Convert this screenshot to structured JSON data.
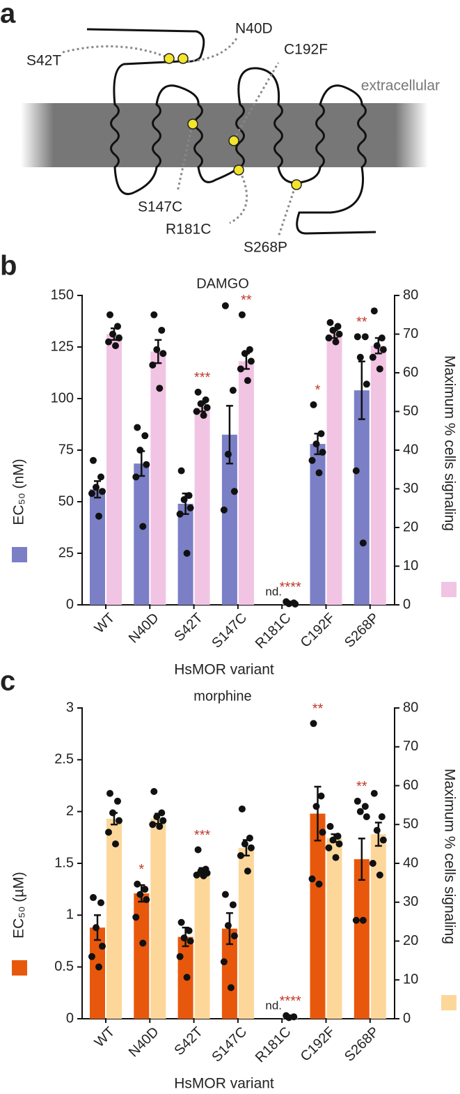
{
  "panel_a": {
    "panel": "a",
    "region_label": "extracellular",
    "mutations": [
      "S42T",
      "N40D",
      "C192F",
      "S147C",
      "R181C",
      "S268P"
    ]
  },
  "chart_data": [
    {
      "type": "bar",
      "panel": "b",
      "title": "DAMGO",
      "x_label": "HsMOR variant",
      "categories": [
        "WT",
        "N40D",
        "S42T",
        "S147C",
        "R181C",
        "C192F",
        "S268P"
      ],
      "ylim": [
        0,
        150
      ],
      "yticks": [
        0,
        25,
        50,
        75,
        100,
        125,
        150
      ],
      "y2lim": [
        0,
        80
      ],
      "y2ticks": [
        0,
        10,
        20,
        30,
        40,
        50,
        60,
        70,
        80
      ],
      "series": [
        {
          "name": "EC₅₀ (nM)",
          "color": "#7b7fc6",
          "values": [
            56,
            68.5,
            49,
            82.5,
            null,
            78,
            104
          ],
          "errors": [
            4,
            6,
            5,
            14,
            null,
            5,
            14
          ],
          "annotations": [
            null,
            null,
            null,
            null,
            "nd.",
            "*",
            "**"
          ],
          "points": [
            [
              70,
              62,
              57,
              55,
              54,
              43
            ],
            [
              86,
              82,
              75,
              68,
              62,
              38
            ],
            [
              65,
              53,
              51,
              47,
              44,
              25
            ],
            [
              145,
              104,
              73,
              55,
              46
            ],
            [],
            [
              97,
              83,
              78,
              74,
              70,
              64
            ],
            [
              130,
              130,
              120,
              107,
              65,
              30
            ]
          ]
        },
        {
          "name": "Maximum % cells signaling",
          "color": "#f2c4e4",
          "axis": "y2",
          "values": [
            70,
            65.5,
            51,
            63,
            0.5,
            70,
            67
          ],
          "errors": [
            1.5,
            3,
            1,
            2,
            0.1,
            1,
            2
          ],
          "annotations": [
            null,
            null,
            "***",
            "**",
            "****",
            null,
            null
          ],
          "points": [
            [
              75,
              72,
              70,
              69,
              68,
              67
            ],
            [
              75,
              71,
              66,
              65,
              62,
              56
            ],
            [
              55,
              53,
              52,
              51,
              50,
              49
            ],
            [
              75,
              66,
              65,
              63,
              61,
              58
            ],
            [
              0.8,
              0.5,
              0.3,
              0.2
            ],
            [
              73,
              72,
              71,
              70,
              69,
              68
            ],
            [
              76,
              69,
              67,
              66,
              64,
              61
            ]
          ]
        }
      ]
    },
    {
      "type": "bar",
      "panel": "c",
      "title": "morphine",
      "x_label": "HsMOR variant",
      "categories": [
        "WT",
        "N40D",
        "S42T",
        "S147C",
        "R181C",
        "C192F",
        "S268P"
      ],
      "ylim": [
        0,
        3
      ],
      "yticks": [
        0,
        0.5,
        1,
        1.5,
        2,
        2.5,
        3
      ],
      "y2lim": [
        0,
        80
      ],
      "y2ticks": [
        0,
        10,
        20,
        30,
        40,
        50,
        60,
        70,
        80
      ],
      "series": [
        {
          "name": "EC₅₀ (µM)",
          "color": "#e8580c",
          "values": [
            0.88,
            1.21,
            0.79,
            0.87,
            null,
            1.98,
            1.54
          ],
          "errors": [
            0.12,
            0.08,
            0.09,
            0.15,
            null,
            0.26,
            0.2
          ],
          "annotations": [
            null,
            "*",
            null,
            null,
            "nd.",
            "**",
            "**"
          ],
          "points": [
            [
              1.17,
              1.12,
              0.88,
              0.7,
              0.6,
              0.5
            ],
            [
              1.3,
              1.25,
              1.2,
              1.15,
              0.98,
              0.73
            ],
            [
              0.93,
              0.85,
              0.78,
              0.75,
              0.6,
              0.4
            ],
            [
              1.2,
              1.1,
              0.9,
              0.8,
              0.55,
              0.3
            ],
            [],
            [
              2.85,
              2.15,
              2.05,
              1.8,
              1.35,
              1.3
            ],
            [
              2.1,
              2.05,
              2.0,
              1.95,
              0.95,
              0.95
            ]
          ]
        },
        {
          "name": "Maximum % cells signaling",
          "color": "#fdd79a",
          "axis": "y2",
          "values": [
            51.5,
            51.5,
            37.8,
            44,
            0.5,
            46.5,
            47.5
          ],
          "errors": [
            1.5,
            1.3,
            1,
            2,
            0.1,
            1,
            3
          ],
          "annotations": [
            null,
            null,
            "***",
            null,
            "****",
            null,
            null
          ],
          "points": [
            [
              58,
              56,
              53,
              51,
              48,
              45
            ],
            [
              58.5,
              53,
              52,
              51,
              50,
              49.5
            ],
            [
              43.5,
              38.5,
              38,
              37.5,
              37,
              36.8
            ],
            [
              54,
              46.5,
              45,
              44,
              42,
              38
            ],
            [
              0.8,
              0.5,
              0.3
            ],
            [
              49.5,
              47,
              46,
              45,
              44,
              41.5
            ],
            [
              58,
              52,
              48.5,
              46,
              40,
              37
            ]
          ]
        }
      ]
    }
  ]
}
